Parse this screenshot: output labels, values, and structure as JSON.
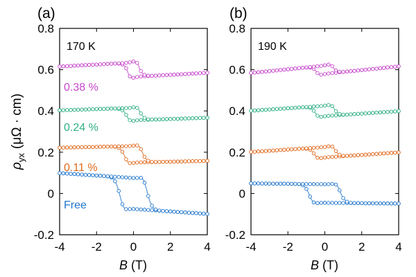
{
  "chart_data": [
    {
      "type": "line",
      "panel_label": "(a)",
      "temperature_label": "170 K",
      "xlabel": "B",
      "xlabel_unit": "(T)",
      "ylabel": "ρ",
      "ylabel_sub": "yx",
      "ylabel_unit": "(μΩ · cm)",
      "xlim": [
        -4,
        4
      ],
      "ylim": [
        -0.2,
        0.8
      ],
      "xticks": [
        "-4",
        "-2",
        "0",
        "2",
        "4"
      ],
      "yticks": [
        "-0.2",
        "0",
        "0.2",
        "0.4",
        "0.6",
        "0.8"
      ],
      "series": [
        {
          "name": "Free",
          "color": "#2277cc",
          "offset": 0.0,
          "background_slope": -0.006,
          "anomaly_amplitude": 0.075,
          "coercive_field": 0.7,
          "transition_width": 0.22,
          "peak_field": 0.75
        },
        {
          "name": "0.11 %",
          "color": "#e06a1e",
          "offset": 0.19,
          "background_slope": 0.002,
          "anomaly_amplitude": 0.04,
          "coercive_field": 0.45,
          "transition_width": 0.2,
          "peak_field": 0.6
        },
        {
          "name": "0.24 %",
          "color": "#2fae86",
          "offset": 0.385,
          "background_slope": 0.003,
          "anomaly_amplitude": 0.03,
          "coercive_field": 0.35,
          "transition_width": 0.18,
          "peak_field": 0.5
        },
        {
          "name": "0.38 %",
          "color": "#c647cc",
          "offset": 0.6,
          "background_slope": 0.005,
          "anomaly_amplitude": 0.035,
          "coercive_field": 0.3,
          "transition_width": 0.15,
          "peak_field": 0.45
        }
      ],
      "legend_labels": [
        "0.38 %",
        "0.24 %",
        "0.11 %",
        "Free"
      ]
    },
    {
      "type": "line",
      "panel_label": "(b)",
      "temperature_label": "190 K",
      "xlabel": "B",
      "xlabel_unit": "(T)",
      "xlim": [
        -4,
        4
      ],
      "ylim": [
        -0.2,
        0.8
      ],
      "xticks": [
        "-4",
        "-2",
        "0",
        "2",
        "4"
      ],
      "yticks": [
        "-0.2",
        "0",
        "0.2",
        "0.4",
        "0.6",
        "0.8"
      ],
      "series": [
        {
          "name": "Free",
          "color": "#2277cc",
          "offset": 0.0,
          "background_slope": -0.001,
          "anomaly_amplitude": 0.045,
          "coercive_field": 0.8,
          "transition_width": 0.22,
          "peak_field": 0.9
        },
        {
          "name": "0.11 %",
          "color": "#e06a1e",
          "offset": 0.2,
          "background_slope": 0.006,
          "anomaly_amplitude": 0.025,
          "coercive_field": 0.55,
          "transition_width": 0.18,
          "peak_field": 0.6
        },
        {
          "name": "0.24 %",
          "color": "#2fae86",
          "offset": 0.4,
          "background_slope": 0.006,
          "anomaly_amplitude": 0.025,
          "coercive_field": 0.5,
          "transition_width": 0.18,
          "peak_field": 0.55
        },
        {
          "name": "0.38 %",
          "color": "#c647cc",
          "offset": 0.6,
          "background_slope": 0.009,
          "anomaly_amplitude": 0.02,
          "coercive_field": 0.45,
          "transition_width": 0.15,
          "peak_field": 0.5
        }
      ]
    }
  ]
}
